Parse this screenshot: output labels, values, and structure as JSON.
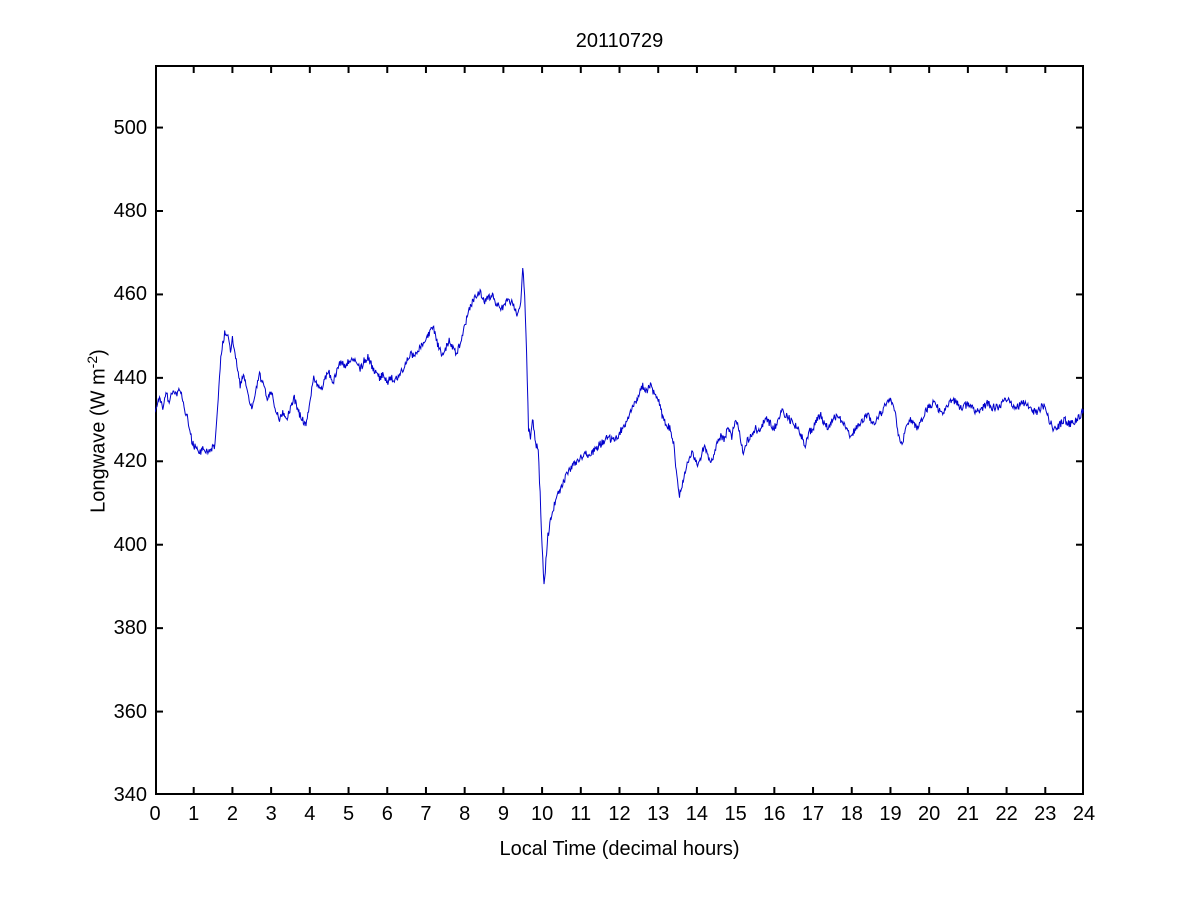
{
  "figure": {
    "title": "20110729",
    "xlabel": "Local Time (decimal hours)",
    "ylabel_prefix": "Longwave (W m",
    "ylabel_superscript": "-2",
    "ylabel_suffix": ")"
  },
  "chart_data": {
    "type": "line",
    "title": "20110729",
    "xlabel": "Local Time (decimal hours)",
    "ylabel": "Longwave (W m^-2)",
    "xlim": [
      0,
      24
    ],
    "ylim": [
      340,
      515
    ],
    "x_ticks": [
      0,
      1,
      2,
      3,
      4,
      5,
      6,
      7,
      8,
      9,
      10,
      11,
      12,
      13,
      14,
      15,
      16,
      17,
      18,
      19,
      20,
      21,
      22,
      23,
      24
    ],
    "y_ticks": [
      340,
      360,
      380,
      400,
      420,
      440,
      460,
      480,
      500
    ],
    "grid": "off",
    "legend": null,
    "line_color": "#0000CC",
    "line_width": 1,
    "noise_amplitude": 0.9,
    "sample_step_hours": 0.0166667,
    "series": [
      {
        "name": "longwave",
        "points": [
          [
            0,
            432
          ],
          [
            0.1,
            435
          ],
          [
            0.2,
            433
          ],
          [
            0.3,
            437
          ],
          [
            0.35,
            434
          ],
          [
            0.45,
            437
          ],
          [
            0.55,
            436
          ],
          [
            0.65,
            437
          ],
          [
            0.75,
            433
          ],
          [
            0.85,
            430
          ],
          [
            0.95,
            425
          ],
          [
            1.05,
            423
          ],
          [
            1.15,
            422
          ],
          [
            1.25,
            423
          ],
          [
            1.35,
            422
          ],
          [
            1.45,
            423
          ],
          [
            1.55,
            424
          ],
          [
            1.6,
            430
          ],
          [
            1.7,
            445
          ],
          [
            1.8,
            451
          ],
          [
            1.9,
            450
          ],
          [
            1.95,
            446
          ],
          [
            2.0,
            450
          ],
          [
            2.1,
            444
          ],
          [
            2.2,
            438
          ],
          [
            2.3,
            441
          ],
          [
            2.4,
            436
          ],
          [
            2.5,
            433
          ],
          [
            2.6,
            437
          ],
          [
            2.7,
            441
          ],
          [
            2.8,
            438
          ],
          [
            2.9,
            435
          ],
          [
            3.0,
            437
          ],
          [
            3.1,
            433
          ],
          [
            3.2,
            430
          ],
          [
            3.3,
            432
          ],
          [
            3.4,
            430
          ],
          [
            3.5,
            433
          ],
          [
            3.6,
            435
          ],
          [
            3.7,
            432
          ],
          [
            3.8,
            430
          ],
          [
            3.9,
            429
          ],
          [
            4.0,
            434
          ],
          [
            4.1,
            440
          ],
          [
            4.2,
            438
          ],
          [
            4.3,
            437
          ],
          [
            4.4,
            440
          ],
          [
            4.5,
            441
          ],
          [
            4.6,
            439
          ],
          [
            4.7,
            442
          ],
          [
            4.8,
            444
          ],
          [
            4.9,
            443
          ],
          [
            5.0,
            444
          ],
          [
            5.1,
            445
          ],
          [
            5.2,
            444
          ],
          [
            5.3,
            442
          ],
          [
            5.4,
            444
          ],
          [
            5.5,
            445
          ],
          [
            5.6,
            443
          ],
          [
            5.7,
            441
          ],
          [
            5.8,
            440
          ],
          [
            5.9,
            441
          ],
          [
            6.0,
            439
          ],
          [
            6.1,
            440
          ],
          [
            6.2,
            439
          ],
          [
            6.3,
            441
          ],
          [
            6.4,
            442
          ],
          [
            6.5,
            444
          ],
          [
            6.6,
            446
          ],
          [
            6.7,
            445
          ],
          [
            6.8,
            447
          ],
          [
            6.9,
            448
          ],
          [
            7.0,
            449
          ],
          [
            7.1,
            451
          ],
          [
            7.2,
            452
          ],
          [
            7.3,
            448
          ],
          [
            7.4,
            446
          ],
          [
            7.5,
            447
          ],
          [
            7.6,
            449
          ],
          [
            7.7,
            447
          ],
          [
            7.8,
            446
          ],
          [
            7.9,
            449
          ],
          [
            8.0,
            452
          ],
          [
            8.1,
            456
          ],
          [
            8.2,
            458
          ],
          [
            8.3,
            460
          ],
          [
            8.4,
            461
          ],
          [
            8.5,
            458
          ],
          [
            8.6,
            459
          ],
          [
            8.7,
            460
          ],
          [
            8.8,
            458
          ],
          [
            8.9,
            457
          ],
          [
            9.0,
            457
          ],
          [
            9.1,
            459
          ],
          [
            9.2,
            458
          ],
          [
            9.3,
            457
          ],
          [
            9.35,
            455
          ],
          [
            9.45,
            458
          ],
          [
            9.5,
            466
          ],
          [
            9.55,
            460
          ],
          [
            9.6,
            445
          ],
          [
            9.65,
            428
          ],
          [
            9.7,
            425
          ],
          [
            9.75,
            430
          ],
          [
            9.8,
            427
          ],
          [
            9.85,
            424
          ],
          [
            9.9,
            423
          ],
          [
            9.95,
            412
          ],
          [
            10.0,
            400
          ],
          [
            10.05,
            390
          ],
          [
            10.1,
            396
          ],
          [
            10.15,
            402
          ],
          [
            10.2,
            405
          ],
          [
            10.3,
            409
          ],
          [
            10.4,
            412
          ],
          [
            10.5,
            414
          ],
          [
            10.6,
            416
          ],
          [
            10.7,
            418
          ],
          [
            10.8,
            419
          ],
          [
            10.9,
            420
          ],
          [
            11.0,
            421
          ],
          [
            11.1,
            422
          ],
          [
            11.2,
            421
          ],
          [
            11.3,
            422
          ],
          [
            11.4,
            423
          ],
          [
            11.5,
            424
          ],
          [
            11.6,
            425
          ],
          [
            11.7,
            426
          ],
          [
            11.8,
            425
          ],
          [
            11.9,
            425
          ],
          [
            12.0,
            427
          ],
          [
            12.1,
            428
          ],
          [
            12.2,
            430
          ],
          [
            12.3,
            432
          ],
          [
            12.4,
            434
          ],
          [
            12.5,
            436
          ],
          [
            12.6,
            438
          ],
          [
            12.7,
            437
          ],
          [
            12.8,
            438
          ],
          [
            12.9,
            436
          ],
          [
            13.0,
            435
          ],
          [
            13.1,
            431
          ],
          [
            13.2,
            429
          ],
          [
            13.3,
            428
          ],
          [
            13.4,
            424
          ],
          [
            13.5,
            415
          ],
          [
            13.55,
            412
          ],
          [
            13.6,
            413
          ],
          [
            13.7,
            418
          ],
          [
            13.8,
            421
          ],
          [
            13.9,
            422
          ],
          [
            14.0,
            419
          ],
          [
            14.1,
            421
          ],
          [
            14.2,
            424
          ],
          [
            14.3,
            421
          ],
          [
            14.4,
            420
          ],
          [
            14.5,
            424
          ],
          [
            14.6,
            426
          ],
          [
            14.7,
            425
          ],
          [
            14.8,
            428
          ],
          [
            14.9,
            426
          ],
          [
            15.0,
            430
          ],
          [
            15.1,
            427
          ],
          [
            15.2,
            422
          ],
          [
            15.3,
            425
          ],
          [
            15.4,
            426
          ],
          [
            15.5,
            428
          ],
          [
            15.6,
            427
          ],
          [
            15.7,
            429
          ],
          [
            15.8,
            430
          ],
          [
            15.9,
            429
          ],
          [
            16.0,
            428
          ],
          [
            16.1,
            430
          ],
          [
            16.2,
            432
          ],
          [
            16.3,
            431
          ],
          [
            16.4,
            430
          ],
          [
            16.5,
            429
          ],
          [
            16.6,
            428
          ],
          [
            16.7,
            426
          ],
          [
            16.8,
            424
          ],
          [
            16.9,
            427
          ],
          [
            17.0,
            428
          ],
          [
            17.1,
            430
          ],
          [
            17.2,
            431
          ],
          [
            17.3,
            429
          ],
          [
            17.4,
            428
          ],
          [
            17.5,
            430
          ],
          [
            17.6,
            431
          ],
          [
            17.7,
            430
          ],
          [
            17.8,
            429
          ],
          [
            17.9,
            427
          ],
          [
            18.0,
            426
          ],
          [
            18.1,
            428
          ],
          [
            18.2,
            429
          ],
          [
            18.3,
            430
          ],
          [
            18.4,
            431
          ],
          [
            18.5,
            430
          ],
          [
            18.6,
            429
          ],
          [
            18.7,
            431
          ],
          [
            18.8,
            432
          ],
          [
            18.9,
            434
          ],
          [
            19.0,
            435
          ],
          [
            19.1,
            433
          ],
          [
            19.2,
            427
          ],
          [
            19.3,
            424
          ],
          [
            19.4,
            428
          ],
          [
            19.5,
            430
          ],
          [
            19.6,
            429
          ],
          [
            19.7,
            428
          ],
          [
            19.8,
            430
          ],
          [
            19.9,
            432
          ],
          [
            20.0,
            433
          ],
          [
            20.1,
            434
          ],
          [
            20.2,
            433
          ],
          [
            20.3,
            432
          ],
          [
            20.4,
            432
          ],
          [
            20.5,
            434
          ],
          [
            20.6,
            435
          ],
          [
            20.7,
            434
          ],
          [
            20.8,
            433
          ],
          [
            20.9,
            433
          ],
          [
            21.0,
            434
          ],
          [
            21.1,
            433
          ],
          [
            21.2,
            432
          ],
          [
            21.3,
            432
          ],
          [
            21.4,
            433
          ],
          [
            21.5,
            434
          ],
          [
            21.6,
            433
          ],
          [
            21.7,
            433
          ],
          [
            21.8,
            433
          ],
          [
            21.9,
            434
          ],
          [
            22.0,
            435
          ],
          [
            22.1,
            434
          ],
          [
            22.2,
            433
          ],
          [
            22.3,
            433
          ],
          [
            22.4,
            434
          ],
          [
            22.5,
            434
          ],
          [
            22.6,
            433
          ],
          [
            22.7,
            432
          ],
          [
            22.8,
            432
          ],
          [
            22.9,
            433
          ],
          [
            23.0,
            433
          ],
          [
            23.1,
            430
          ],
          [
            23.2,
            428
          ],
          [
            23.3,
            428
          ],
          [
            23.4,
            429
          ],
          [
            23.5,
            430
          ],
          [
            23.6,
            429
          ],
          [
            23.7,
            429
          ],
          [
            23.8,
            430
          ],
          [
            23.9,
            431
          ],
          [
            24.0,
            433
          ]
        ]
      }
    ]
  }
}
